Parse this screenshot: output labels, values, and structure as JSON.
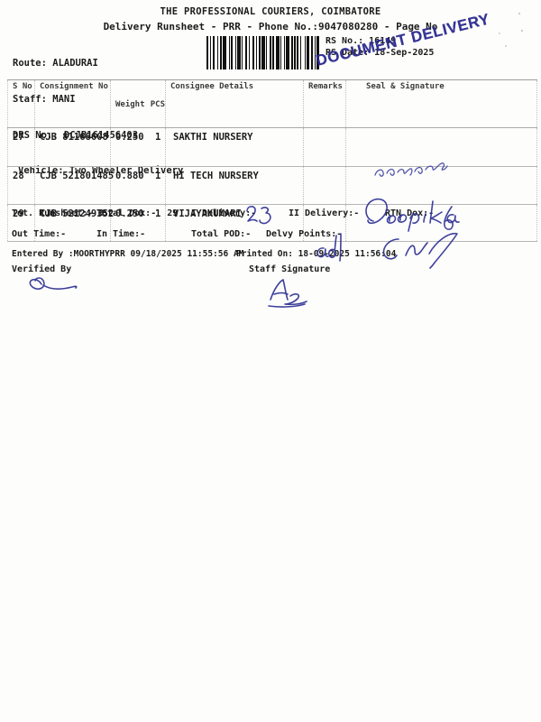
{
  "header": {
    "title": "THE PROFESSIONAL COURIERS, COIMBATORE",
    "subtitle": "Delivery Runsheet - PRR - Phone No.:9047080280 - Page No",
    "route": "Route: ALADURAI",
    "staff": "Staff: MANI",
    "drs_no": "DRS No.: DCJB161456403",
    "vehicle": "Vehicle: Two Wheeler Delivery",
    "rs_no": "RS No.: 16149",
    "rs_date": "RS Date: 18-Sep-2025",
    "stamp_text": "DOCUMENT DELIVERY",
    "stamp_color": "#2b2a8f",
    "ink_color": "#2e3192"
  },
  "table": {
    "headers": [
      "S No",
      "Consignment No",
      "Weight",
      "PCS",
      "Consignee Details",
      "Remarks",
      "Seal & Signature"
    ],
    "rows": [
      {
        "s_no": "27",
        "consignment_no": "CJB 81168608",
        "weight": "0.250",
        "pcs": "1",
        "consignee": "SAKTHI NURSERY",
        "remarks": "",
        "signature": "handwritten Tamil signature"
      },
      {
        "s_no": "28",
        "consignment_no": "CJB 521801485",
        "weight": "0.880",
        "pcs": "1",
        "consignee": "HI TECH NURSERY",
        "remarks": "",
        "signature": "Deepika"
      },
      {
        "s_no": "29",
        "consignment_no": "CJB 521249352",
        "weight": "0.250",
        "pcs": "1",
        "consignee": "VIJAYAKUMARI",
        "remarks": "ad",
        "signature": "CNL"
      }
    ]
  },
  "summary": {
    "tot_runsheet": "Tot. Runsheet:- 3",
    "total_dox": "Total Dox:-  29",
    "i_delivery": "I Delivery:-",
    "i_delivery_handwritten": "23",
    "ii_delivery": "II Delivery:-",
    "rtn_dox": "RTN Dox:-",
    "rtn_dox_handwritten": "6",
    "out_time": "Out Time:-",
    "in_time": "In Time:-",
    "total_pod": "Total POD:-",
    "delvy_points": "Delvy Points:-",
    "entered_by": "Entered By :MOORTHYPRR 09/18/2025 11:55:56 AM",
    "printed_on": "Printed On: 18-09-2025 11:56:04",
    "verified_by": "Verified By",
    "staff_signature_label": "Staff Signature"
  }
}
